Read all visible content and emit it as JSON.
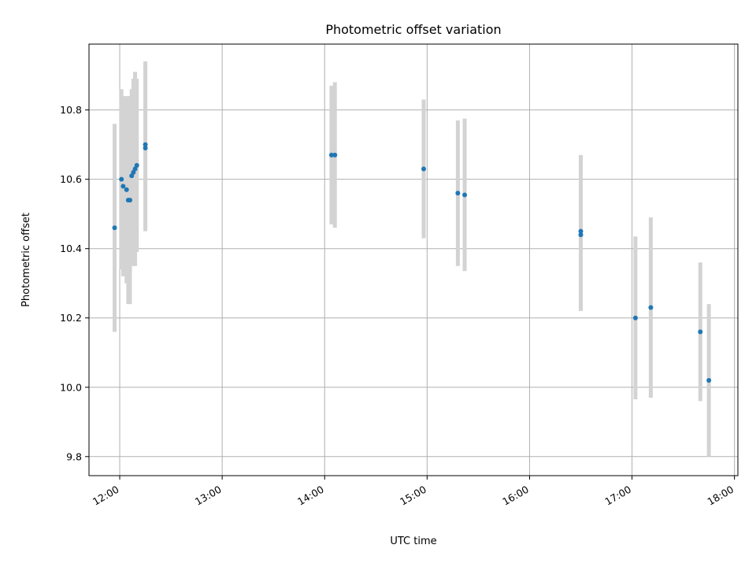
{
  "chart_data": {
    "type": "scatter",
    "title": "Photometric offset variation",
    "xlabel": "UTC time",
    "ylabel": "Photometric offset",
    "xlim": [
      "11:42",
      "18:02"
    ],
    "ylim": [
      9.745,
      10.99
    ],
    "x_ticks": [
      "12:00",
      "13:00",
      "14:00",
      "15:00",
      "16:00",
      "17:00",
      "18:00"
    ],
    "y_ticks": [
      "9.8",
      "10.0",
      "10.2",
      "10.4",
      "10.6",
      "10.8"
    ],
    "grid": true,
    "colors": {
      "point": "#1f77b4",
      "errorbar": "#d3d3d3",
      "grid": "#b0b0b0",
      "axes": "#000000"
    },
    "points": [
      {
        "x": "11:57",
        "y": 10.46,
        "err": 0.3
      },
      {
        "x": "12:01",
        "y": 10.6,
        "err": 0.26
      },
      {
        "x": "12:02",
        "y": 10.58,
        "err": 0.26
      },
      {
        "x": "12:04",
        "y": 10.57,
        "err": 0.27
      },
      {
        "x": "12:05",
        "y": 10.54,
        "err": 0.3
      },
      {
        "x": "12:06",
        "y": 10.54,
        "err": 0.3
      },
      {
        "x": "12:07",
        "y": 10.61,
        "err": 0.25
      },
      {
        "x": "12:08",
        "y": 10.62,
        "err": 0.27
      },
      {
        "x": "12:09",
        "y": 10.63,
        "err": 0.28
      },
      {
        "x": "12:10",
        "y": 10.64,
        "err": 0.25
      },
      {
        "x": "12:15",
        "y": 10.69,
        "err": 0.24
      },
      {
        "x": "12:15",
        "y": 10.7,
        "err": 0.24
      },
      {
        "x": "14:04",
        "y": 10.67,
        "err": 0.2
      },
      {
        "x": "14:06",
        "y": 10.67,
        "err": 0.21
      },
      {
        "x": "14:58",
        "y": 10.63,
        "err": 0.2
      },
      {
        "x": "15:18",
        "y": 10.56,
        "err": 0.21
      },
      {
        "x": "15:22",
        "y": 10.555,
        "err": 0.22
      },
      {
        "x": "16:30",
        "y": 10.44,
        "err": 0.22
      },
      {
        "x": "16:30",
        "y": 10.45,
        "err": 0.22
      },
      {
        "x": "17:02",
        "y": 10.2,
        "err": 0.235
      },
      {
        "x": "17:11",
        "y": 10.23,
        "err": 0.26
      },
      {
        "x": "17:40",
        "y": 10.16,
        "err": 0.2
      },
      {
        "x": "17:45",
        "y": 10.02,
        "err": 0.22
      }
    ]
  }
}
